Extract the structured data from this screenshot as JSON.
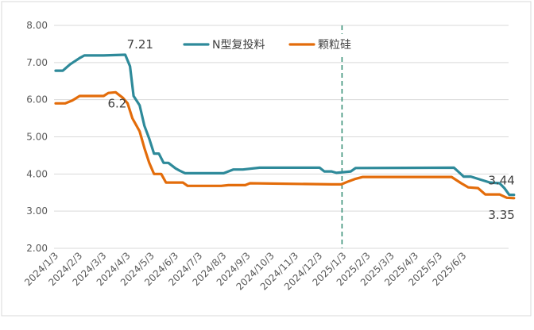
{
  "chart_data": {
    "type": "line",
    "x": [
      "2024/1/3",
      "2024/2/3",
      "2024/3/3",
      "2024/4/3",
      "2024/5/3",
      "2024/6/3",
      "2024/7/3",
      "2024/8/3",
      "2024/9/3",
      "2024/10/3",
      "2024/11/3",
      "2024/12/3",
      "2025/1/3",
      "2025/2/3",
      "2025/3/3",
      "2025/4/3",
      "2025/5/3",
      "2025/6/3"
    ],
    "ylim": [
      2.0,
      8.0
    ],
    "yticks": [
      "2.00",
      "3.00",
      "4.00",
      "5.00",
      "6.00",
      "7.00",
      "8.00"
    ],
    "legend_position": "top",
    "vline_at": 12,
    "series": [
      {
        "name": "N型复投料",
        "color": "#2E8A9A",
        "points": [
          [
            0,
            6.78
          ],
          [
            0.3,
            6.78
          ],
          [
            0.6,
            6.95
          ],
          [
            1.0,
            7.12
          ],
          [
            1.2,
            7.19
          ],
          [
            2.0,
            7.19
          ],
          [
            2.9,
            7.21
          ],
          [
            3.1,
            6.9
          ],
          [
            3.25,
            6.1
          ],
          [
            3.5,
            5.85
          ],
          [
            3.7,
            5.3
          ],
          [
            3.9,
            4.95
          ],
          [
            4.1,
            4.55
          ],
          [
            4.3,
            4.55
          ],
          [
            4.5,
            4.3
          ],
          [
            4.7,
            4.3
          ],
          [
            5.0,
            4.15
          ],
          [
            5.2,
            4.08
          ],
          [
            5.4,
            4.02
          ],
          [
            7.0,
            4.02
          ],
          [
            7.4,
            4.12
          ],
          [
            7.8,
            4.12
          ],
          [
            8.5,
            4.17
          ],
          [
            11.0,
            4.17
          ],
          [
            11.2,
            4.07
          ],
          [
            11.5,
            4.07
          ],
          [
            11.7,
            4.03
          ],
          [
            12.3,
            4.07
          ],
          [
            12.5,
            4.16
          ],
          [
            16.6,
            4.17
          ],
          [
            16.8,
            4.05
          ],
          [
            17.0,
            3.93
          ],
          [
            17.3,
            3.93
          ],
          [
            17.7,
            3.85
          ],
          [
            18.1,
            3.77
          ],
          [
            18.5,
            3.75
          ],
          [
            18.7,
            3.62
          ],
          [
            18.9,
            3.44
          ],
          [
            19.1,
            3.44
          ]
        ]
      },
      {
        "name": "颗粒硅",
        "color": "#E36C0A",
        "points": [
          [
            0,
            5.9
          ],
          [
            0.4,
            5.9
          ],
          [
            0.7,
            5.98
          ],
          [
            1.0,
            6.1
          ],
          [
            2.0,
            6.1
          ],
          [
            2.2,
            6.18
          ],
          [
            2.5,
            6.2
          ],
          [
            2.8,
            6.05
          ],
          [
            3.0,
            5.9
          ],
          [
            3.2,
            5.5
          ],
          [
            3.5,
            5.15
          ],
          [
            3.7,
            4.7
          ],
          [
            3.9,
            4.3
          ],
          [
            4.1,
            4.0
          ],
          [
            4.4,
            4.0
          ],
          [
            4.6,
            3.77
          ],
          [
            5.3,
            3.77
          ],
          [
            5.5,
            3.68
          ],
          [
            6.9,
            3.68
          ],
          [
            7.2,
            3.7
          ],
          [
            7.9,
            3.7
          ],
          [
            8.1,
            3.75
          ],
          [
            11.5,
            3.72
          ],
          [
            11.9,
            3.72
          ],
          [
            12.2,
            3.8
          ],
          [
            12.5,
            3.87
          ],
          [
            12.8,
            3.92
          ],
          [
            16.5,
            3.92
          ],
          [
            16.9,
            3.75
          ],
          [
            17.2,
            3.64
          ],
          [
            17.6,
            3.62
          ],
          [
            17.9,
            3.45
          ],
          [
            18.5,
            3.45
          ],
          [
            18.8,
            3.36
          ],
          [
            19.1,
            3.35
          ]
        ]
      }
    ],
    "annotations": [
      "7.21",
      "6.2",
      "3.44",
      "3.35"
    ]
  }
}
